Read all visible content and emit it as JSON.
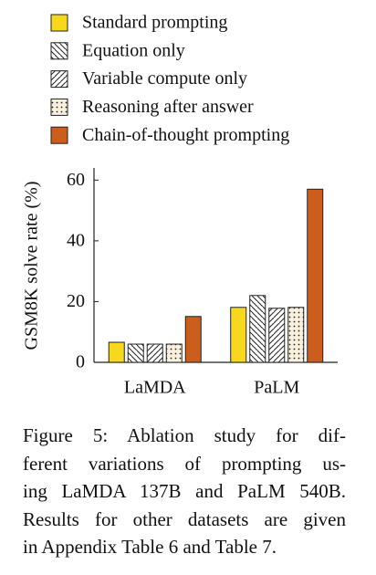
{
  "chart_data": {
    "type": "bar",
    "y_label": "GSM8K solve rate (%)",
    "categories": [
      "LaMDA",
      "PaLM"
    ],
    "series": [
      {
        "name": "Standard prompting",
        "color": "#f8d81c",
        "pattern": "solid",
        "values": [
          6.6,
          18.1
        ]
      },
      {
        "name": "Equation only",
        "color": "#ffffff",
        "pattern": "backslash",
        "values": [
          6.0,
          22.0
        ]
      },
      {
        "name": "Variable compute only",
        "color": "#ffffff",
        "pattern": "slash",
        "values": [
          6.0,
          17.8
        ]
      },
      {
        "name": "Reasoning after answer",
        "color": "#ffffff",
        "pattern": "dots",
        "values": [
          6.0,
          18.1
        ]
      },
      {
        "name": "Chain-of-thought prompting",
        "color": "#cc5e1d",
        "pattern": "solid",
        "values": [
          15.1,
          57.0
        ]
      }
    ],
    "ylim": [
      0,
      64
    ],
    "yticks": [
      0,
      20,
      40,
      60
    ],
    "grid": false
  },
  "caption_lines": [
    "Figure 5:  Ablation study for dif-",
    "ferent variations of prompting us-",
    "ing LaMDA 137B and PaLM 540B.",
    "Results for other datasets are given",
    "in Appendix Table 6 and Table 7."
  ]
}
